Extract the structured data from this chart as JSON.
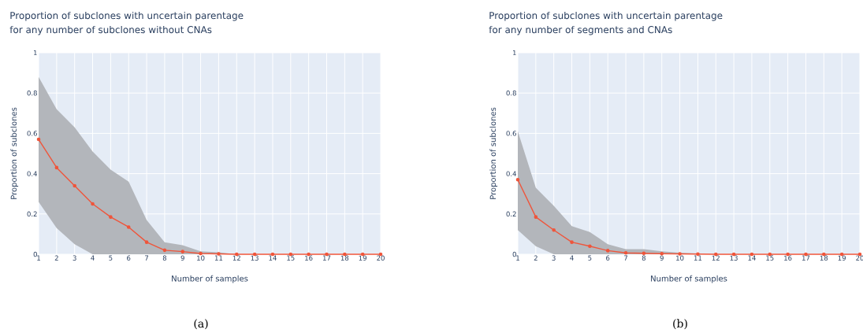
{
  "chart_data": [
    {
      "type": "line",
      "title": "Proportion of subclones with uncertain parentage",
      "subtitle": "for any number of subclones without CNAs",
      "xlabel": "Number of samples",
      "ylabel": "Proportion of subclones",
      "annotations": [
        "(a)"
      ],
      "x": [
        1,
        2,
        3,
        4,
        5,
        6,
        7,
        8,
        9,
        10,
        11,
        12,
        13,
        14,
        15,
        16,
        17,
        18,
        19,
        20
      ],
      "series": [
        {
          "color": "#ef553b",
          "values": [
            0.57,
            0.43,
            0.34,
            0.25,
            0.185,
            0.135,
            0.06,
            0.02,
            0.013,
            0.004,
            0.002,
            0,
            0,
            0,
            0,
            0,
            0,
            0,
            0,
            0
          ],
          "upper": [
            0.88,
            0.72,
            0.63,
            0.51,
            0.42,
            0.36,
            0.17,
            0.06,
            0.045,
            0.015,
            0.01,
            0,
            0,
            0,
            0,
            0,
            0,
            0,
            0,
            0
          ],
          "lower": [
            0.26,
            0.13,
            0.05,
            0,
            0,
            0,
            0,
            0,
            0,
            0,
            0,
            0,
            0,
            0,
            0,
            0,
            0,
            0,
            0,
            0
          ]
        }
      ],
      "xlim": [
        1,
        20
      ],
      "xticks": [
        1,
        2,
        3,
        4,
        5,
        6,
        7,
        8,
        9,
        10,
        11,
        12,
        13,
        14,
        15,
        16,
        17,
        18,
        19,
        20
      ],
      "ylim": [
        0,
        1
      ],
      "yticks": [
        0,
        0.2,
        0.4,
        0.6,
        0.8,
        1
      ],
      "grid": true,
      "marker": "circle",
      "line_style": "solid"
    },
    {
      "type": "line",
      "title": "Proportion of subclones with uncertain parentage",
      "subtitle": "for any number of segments and CNAs",
      "xlabel": "Number of samples",
      "ylabel": "Proportion of subclones",
      "annotations": [
        "(b)"
      ],
      "x": [
        1,
        2,
        3,
        4,
        5,
        6,
        7,
        8,
        9,
        10,
        11,
        12,
        13,
        14,
        15,
        16,
        17,
        18,
        19,
        20
      ],
      "series": [
        {
          "color": "#ef553b",
          "values": [
            0.37,
            0.185,
            0.12,
            0.06,
            0.04,
            0.018,
            0.007,
            0.005,
            0.003,
            0.002,
            0.001,
            0,
            0,
            0,
            0,
            0,
            0,
            0,
            0,
            0
          ],
          "upper": [
            0.61,
            0.33,
            0.24,
            0.14,
            0.11,
            0.05,
            0.025,
            0.025,
            0.015,
            0.008,
            0.004,
            0,
            0,
            0,
            0,
            0,
            0,
            0,
            0,
            0
          ],
          "lower": [
            0.12,
            0.04,
            0,
            0,
            0,
            0,
            0,
            0,
            0,
            0,
            0,
            0,
            0,
            0,
            0,
            0,
            0,
            0,
            0,
            0
          ]
        }
      ],
      "xlim": [
        1,
        20
      ],
      "xticks": [
        1,
        2,
        3,
        4,
        5,
        6,
        7,
        8,
        9,
        10,
        11,
        12,
        13,
        14,
        15,
        16,
        17,
        18,
        19,
        20
      ],
      "ylim": [
        0,
        1
      ],
      "yticks": [
        0,
        0.2,
        0.4,
        0.6,
        0.8,
        1
      ],
      "grid": true,
      "marker": "circle",
      "line_style": "solid"
    }
  ]
}
